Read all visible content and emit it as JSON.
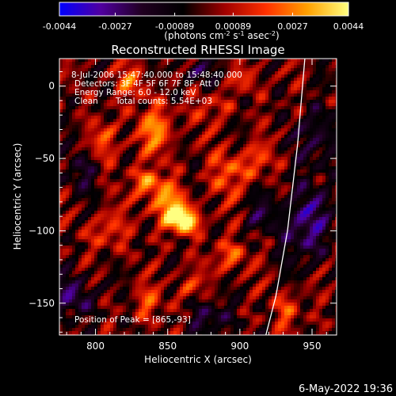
{
  "chart_data": {
    "type": "heatmap",
    "title": "Reconstructed RHESSI Image",
    "xlabel": "Heliocentric X (arcsec)",
    "ylabel": "Heliocentric Y (arcsec)",
    "xlim": [
      775,
      967
    ],
    "ylim": [
      -172,
      19
    ],
    "xticks": [
      800,
      850,
      900,
      950
    ],
    "yticks": [
      0,
      -50,
      -100,
      -150
    ],
    "colorbar": {
      "min": -0.0044,
      "max": 0.0044,
      "ticks": [
        "-0.0044",
        "-0.0027",
        "-0.00089",
        "0.00089",
        "0.0027",
        "0.0044"
      ],
      "units_prefix": "(photons cm",
      "units_exp1": "-2",
      "units_mid": " s",
      "units_exp2": "-1",
      "units_mid2": " asec",
      "units_exp3": "-2",
      "units_suffix": ")",
      "colors": [
        "#0000ff",
        "#5000a0",
        "#200020",
        "#000000",
        "#a00000",
        "#ff3000",
        "#ffa000",
        "#ffff80"
      ]
    },
    "annotations": {
      "time_range": "8-Jul-2006 15:47:40.000 to 15:48:40.000",
      "detectors": "Detectors: 3F 4F 5F 6F 7F 8F, Att 0",
      "energy": "Energy Range: 6.0 - 12.0 keV",
      "clean_label": "Clean",
      "total_counts": "Total counts: 5.54E+03",
      "peak": "Position of Peak = [865,-93]"
    },
    "peak": [
      865,
      -93
    ],
    "limb": [
      [
        945,
        19
      ],
      [
        940,
        -40
      ],
      [
        933,
        -100
      ],
      [
        925,
        -145
      ],
      [
        918,
        -172
      ]
    ],
    "sources": [
      {
        "x": 862,
        "y": -93,
        "amp": 0.0044,
        "sx": 8,
        "sy": 6
      },
      {
        "x": 850,
        "y": -83,
        "amp": 0.003,
        "sx": 9,
        "sy": 9
      },
      {
        "x": 837,
        "y": -67,
        "amp": 0.0024,
        "sx": 10,
        "sy": 7
      },
      {
        "x": 842,
        "y": -30,
        "amp": 0.0026,
        "sx": 9,
        "sy": 12
      },
      {
        "x": 825,
        "y": 3,
        "amp": 0.002,
        "sx": 8,
        "sy": 8
      },
      {
        "x": 808,
        "y": -38,
        "amp": 0.0018,
        "sx": 7,
        "sy": 10
      },
      {
        "x": 892,
        "y": -60,
        "amp": 0.0022,
        "sx": 8,
        "sy": 12
      },
      {
        "x": 913,
        "y": -52,
        "amp": 0.0019,
        "sx": 7,
        "sy": 8
      },
      {
        "x": 880,
        "y": -15,
        "amp": 0.0014,
        "sx": 9,
        "sy": 7
      },
      {
        "x": 905,
        "y": 5,
        "amp": 0.0013,
        "sx": 8,
        "sy": 6
      },
      {
        "x": 893,
        "y": -118,
        "amp": 0.002,
        "sx": 9,
        "sy": 8
      },
      {
        "x": 808,
        "y": -100,
        "amp": 0.0018,
        "sx": 9,
        "sy": 9
      },
      {
        "x": 837,
        "y": -150,
        "amp": 0.0018,
        "sx": 7,
        "sy": 8
      },
      {
        "x": 863,
        "y": -138,
        "amp": 0.0014,
        "sx": 7,
        "sy": 7
      },
      {
        "x": 933,
        "y": -155,
        "amp": 0.0017,
        "sx": 7,
        "sy": 10
      },
      {
        "x": 945,
        "y": -95,
        "amp": -0.0028,
        "sx": 12,
        "sy": 18
      },
      {
        "x": 955,
        "y": -35,
        "amp": -0.002,
        "sx": 10,
        "sy": 14
      },
      {
        "x": 785,
        "y": -145,
        "amp": -0.0024,
        "sx": 10,
        "sy": 10
      },
      {
        "x": 790,
        "y": -60,
        "amp": -0.0016,
        "sx": 8,
        "sy": 10
      },
      {
        "x": 870,
        "y": 10,
        "amp": -0.0016,
        "sx": 9,
        "sy": 6
      },
      {
        "x": 880,
        "y": -160,
        "amp": -0.002,
        "sx": 10,
        "sy": 8
      },
      {
        "x": 912,
        "y": -88,
        "amp": -0.0014,
        "sx": 7,
        "sy": 9
      }
    ]
  },
  "footer": {
    "timestamp": "6-May-2022 19:36"
  }
}
